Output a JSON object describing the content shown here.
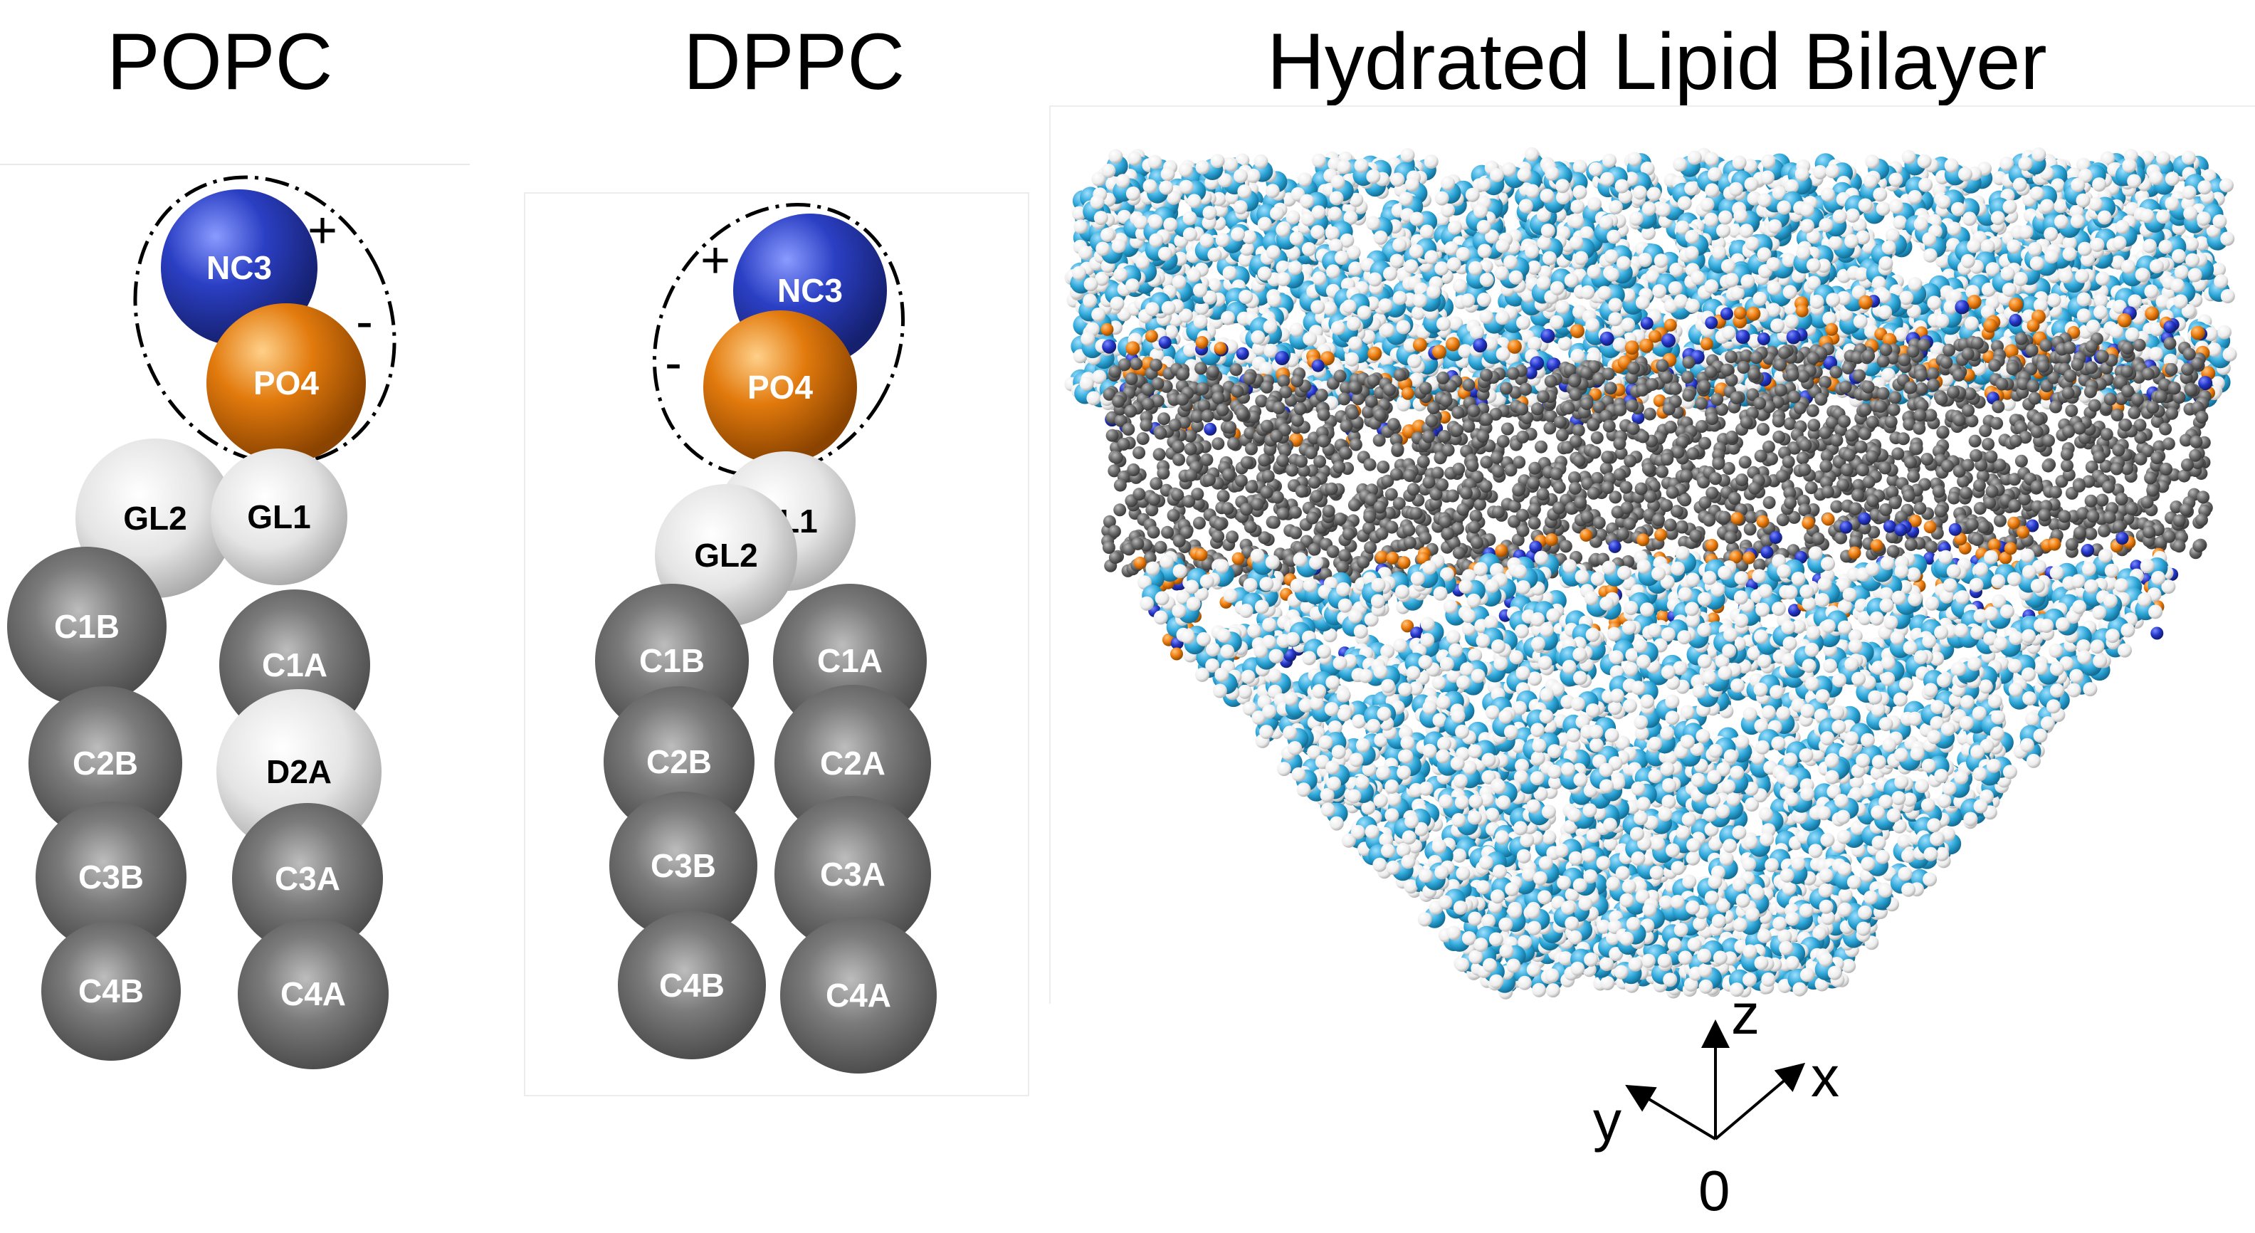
{
  "titles": {
    "popc": "POPC",
    "dppc": "DPPC",
    "bilayer": "Hydrated Lipid Bilayer"
  },
  "colors": {
    "nc3": "#2b3fc4",
    "po4": "#e27a0d",
    "glycerol": "#dcdcdc",
    "tail": "#6d6d6d",
    "water_oxygen": "#2aa4d6",
    "water_hydrogen": "#f4f4f4",
    "lipid_tail": "#6b6b6b",
    "headgroup_nc3": "#2436c8",
    "headgroup_po4": "#ee7d10"
  },
  "popc": {
    "charges": {
      "plus": "+",
      "minus": "-"
    },
    "beads": [
      {
        "label": "NC3",
        "type": "nc3"
      },
      {
        "label": "PO4",
        "type": "po4"
      },
      {
        "label": "GL2",
        "type": "glycerol"
      },
      {
        "label": "GL1",
        "type": "glycerol"
      },
      {
        "label": "C1B",
        "type": "tail"
      },
      {
        "label": "C1A",
        "type": "tail"
      },
      {
        "label": "C2B",
        "type": "tail"
      },
      {
        "label": "D2A",
        "type": "glycerol"
      },
      {
        "label": "C3B",
        "type": "tail"
      },
      {
        "label": "C3A",
        "type": "tail"
      },
      {
        "label": "C4B",
        "type": "tail"
      },
      {
        "label": "C4A",
        "type": "tail"
      }
    ]
  },
  "dppc": {
    "charges": {
      "plus": "+",
      "minus": "-"
    },
    "beads": [
      {
        "label": "NC3",
        "type": "nc3"
      },
      {
        "label": "PO4",
        "type": "po4"
      },
      {
        "label": "GL1",
        "type": "glycerol"
      },
      {
        "label": "GL2",
        "type": "glycerol"
      },
      {
        "label": "C1B",
        "type": "tail"
      },
      {
        "label": "C1A",
        "type": "tail"
      },
      {
        "label": "C2B",
        "type": "tail"
      },
      {
        "label": "C2A",
        "type": "tail"
      },
      {
        "label": "C3B",
        "type": "tail"
      },
      {
        "label": "C3A",
        "type": "tail"
      },
      {
        "label": "C4B",
        "type": "tail"
      },
      {
        "label": "C4A",
        "type": "tail"
      }
    ]
  },
  "axes": {
    "z": "z",
    "x": "x",
    "y": "y",
    "origin": "0"
  }
}
